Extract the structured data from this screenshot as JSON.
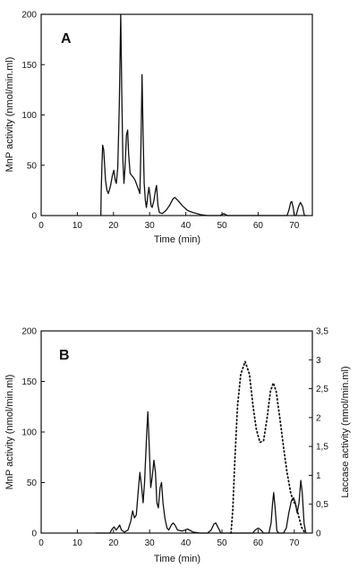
{
  "chart_data": [
    {
      "type": "line",
      "panel": "A",
      "xlabel": "Time (min)",
      "ylabel": "MnP activity (nmol/min.ml)",
      "xlim": [
        0,
        75
      ],
      "ylim": [
        0,
        200
      ],
      "xticks": [
        "0",
        "10",
        "20",
        "30",
        "40",
        "50",
        "60",
        "70"
      ],
      "yticks": [
        "0",
        "50",
        "100",
        "150",
        "200"
      ],
      "series": [
        {
          "style": "solid",
          "points": [
            [
              16.5,
              0
            ],
            [
              16.6,
              25
            ],
            [
              16.8,
              50
            ],
            [
              17,
              70
            ],
            [
              17.3,
              65
            ],
            [
              17.8,
              35
            ],
            [
              18.2,
              25
            ],
            [
              18.6,
              22
            ],
            [
              19.2,
              30
            ],
            [
              19.7,
              40
            ],
            [
              20.1,
              45
            ],
            [
              20.5,
              35
            ],
            [
              20.8,
              32
            ],
            [
              21.2,
              48
            ],
            [
              21.6,
              110
            ],
            [
              22,
              200
            ],
            [
              22.3,
              120
            ],
            [
              22.6,
              55
            ],
            [
              22.9,
              32
            ],
            [
              23.2,
              48
            ],
            [
              23.6,
              80
            ],
            [
              23.9,
              85
            ],
            [
              24.2,
              60
            ],
            [
              24.6,
              42
            ],
            [
              25,
              40
            ],
            [
              25.5,
              38
            ],
            [
              26,
              35
            ],
            [
              26.5,
              30
            ],
            [
              27,
              25
            ],
            [
              27.3,
              22
            ],
            [
              27.6,
              70
            ],
            [
              27.9,
              140
            ],
            [
              28.2,
              80
            ],
            [
              28.5,
              32
            ],
            [
              28.8,
              15
            ],
            [
              29.1,
              8
            ],
            [
              29.5,
              20
            ],
            [
              29.8,
              28
            ],
            [
              30.1,
              20
            ],
            [
              30.4,
              10
            ],
            [
              30.7,
              8
            ],
            [
              31.2,
              15
            ],
            [
              31.6,
              25
            ],
            [
              31.9,
              30
            ],
            [
              32.3,
              10
            ],
            [
              32.7,
              3
            ],
            [
              33.5,
              2
            ],
            [
              34.5,
              5
            ],
            [
              35.5,
              10
            ],
            [
              36.5,
              17
            ],
            [
              37,
              18
            ],
            [
              37.8,
              15
            ],
            [
              39,
              10
            ],
            [
              40.5,
              5
            ],
            [
              42,
              3
            ],
            [
              44,
              1
            ],
            [
              46,
              0
            ],
            [
              48,
              0
            ],
            [
              49.5,
              0
            ],
            [
              50.5,
              2
            ],
            [
              51.5,
              0
            ],
            [
              60,
              0
            ],
            [
              68,
              0
            ],
            [
              68.5,
              5
            ],
            [
              69,
              13
            ],
            [
              69.3,
              14
            ],
            [
              69.7,
              8
            ],
            [
              70,
              0
            ],
            [
              70.5,
              0
            ],
            [
              71.2,
              9
            ],
            [
              71.7,
              13
            ],
            [
              72.3,
              9
            ],
            [
              72.8,
              0
            ],
            [
              73.5,
              0
            ]
          ]
        }
      ]
    },
    {
      "type": "line",
      "panel": "B",
      "xlabel": "Time (min)",
      "ylabel": "MnP activity (nmol/min.ml)",
      "y2label": "Laccase activity (nmol/min.ml)",
      "xlim": [
        0,
        75
      ],
      "ylim": [
        0,
        200
      ],
      "y2lim": [
        0,
        3.5
      ],
      "xticks": [
        "0",
        "10",
        "20",
        "30",
        "40",
        "50",
        "60",
        "70"
      ],
      "yticks": [
        "0",
        "50",
        "100",
        "150",
        "200"
      ],
      "y2ticks": [
        "0",
        "0,5",
        "1",
        "1,5",
        "2",
        "2,5",
        "3",
        "3,5"
      ],
      "series": [
        {
          "style": "solid",
          "axis": "left",
          "points": [
            [
              15,
              0
            ],
            [
              19,
              0
            ],
            [
              19.6,
              4
            ],
            [
              20.2,
              6
            ],
            [
              20.7,
              3
            ],
            [
              21.2,
              5
            ],
            [
              21.7,
              8
            ],
            [
              22.2,
              3
            ],
            [
              23,
              1
            ],
            [
              24,
              3
            ],
            [
              24.8,
              12
            ],
            [
              25.3,
              22
            ],
            [
              25.8,
              15
            ],
            [
              26.3,
              18
            ],
            [
              26.8,
              40
            ],
            [
              27.3,
              60
            ],
            [
              27.8,
              45
            ],
            [
              28.2,
              30
            ],
            [
              28.6,
              50
            ],
            [
              29.2,
              100
            ],
            [
              29.5,
              120
            ],
            [
              29.9,
              85
            ],
            [
              30.3,
              45
            ],
            [
              30.7,
              55
            ],
            [
              31.2,
              72
            ],
            [
              31.6,
              60
            ],
            [
              32,
              30
            ],
            [
              32.4,
              25
            ],
            [
              32.9,
              45
            ],
            [
              33.3,
              50
            ],
            [
              33.7,
              30
            ],
            [
              34.2,
              15
            ],
            [
              34.8,
              5
            ],
            [
              35.3,
              3
            ],
            [
              36,
              8
            ],
            [
              36.5,
              10
            ],
            [
              37,
              8
            ],
            [
              37.7,
              3
            ],
            [
              39,
              2
            ],
            [
              40.5,
              4
            ],
            [
              42,
              1
            ],
            [
              44,
              0
            ],
            [
              46,
              0
            ],
            [
              47,
              3
            ],
            [
              47.8,
              9
            ],
            [
              48.3,
              10
            ],
            [
              49,
              5
            ],
            [
              49.7,
              0
            ],
            [
              58.5,
              0
            ],
            [
              59.2,
              3
            ],
            [
              60,
              5
            ],
            [
              60.8,
              3
            ],
            [
              61.5,
              0
            ],
            [
              63,
              0
            ],
            [
              63.6,
              10
            ],
            [
              64,
              30
            ],
            [
              64.3,
              40
            ],
            [
              64.7,
              25
            ],
            [
              65.2,
              2
            ],
            [
              65.8,
              0
            ],
            [
              67,
              0
            ],
            [
              67.8,
              5
            ],
            [
              68.5,
              20
            ],
            [
              69.2,
              32
            ],
            [
              69.8,
              35
            ],
            [
              70.3,
              30
            ],
            [
              70.8,
              20
            ],
            [
              71.3,
              30
            ],
            [
              71.8,
              52
            ],
            [
              72.2,
              40
            ],
            [
              72.7,
              10
            ],
            [
              73.2,
              0
            ]
          ]
        },
        {
          "style": "dotted",
          "axis": "right",
          "points": [
            [
              52.5,
              0
            ],
            [
              53,
              0.4
            ],
            [
              53.6,
              1.3
            ],
            [
              54.3,
              2.2
            ],
            [
              55.2,
              2.75
            ],
            [
              56.4,
              2.97
            ],
            [
              57.6,
              2.75
            ],
            [
              58.6,
              2.2
            ],
            [
              59.5,
              1.8
            ],
            [
              60.5,
              1.57
            ],
            [
              61.5,
              1.6
            ],
            [
              62.5,
              2.0
            ],
            [
              63.4,
              2.45
            ],
            [
              64.2,
              2.6
            ],
            [
              65,
              2.45
            ],
            [
              66,
              2.0
            ],
            [
              67,
              1.5
            ],
            [
              68,
              1.05
            ],
            [
              69,
              0.7
            ],
            [
              69.7,
              0.55
            ],
            [
              70.3,
              0.5
            ],
            [
              71,
              0.35
            ],
            [
              72,
              0.1
            ],
            [
              73,
              0
            ]
          ]
        }
      ]
    }
  ]
}
